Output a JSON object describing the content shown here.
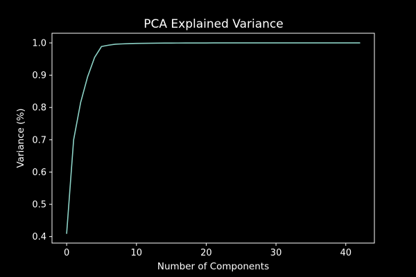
{
  "colors": {
    "background": "#000000",
    "foreground": "#ffffff",
    "series": "#8dd3c7"
  },
  "chart_data": {
    "type": "line",
    "title": "PCA Explained Variance",
    "xlabel": "Number of Components",
    "ylabel": "Variance (%)",
    "xlim": [
      -2.1,
      44.1
    ],
    "ylim": [
      0.38,
      1.03
    ],
    "xticks": [
      0,
      10,
      20,
      30,
      40
    ],
    "yticks": [
      0.4,
      0.5,
      0.6,
      0.7,
      0.8,
      0.9,
      1.0
    ],
    "xtick_labels": [
      "0",
      "10",
      "20",
      "30",
      "40"
    ],
    "ytick_labels": [
      "0.4",
      "0.5",
      "0.6",
      "0.7",
      "0.8",
      "0.9",
      "1.0"
    ],
    "grid": false,
    "legend": "none",
    "series": [
      {
        "x": [
          0,
          1,
          2,
          3,
          4,
          5,
          6,
          7,
          8,
          9,
          10,
          11,
          12,
          13,
          14,
          15,
          16,
          17,
          18,
          19,
          20,
          21,
          22,
          23,
          24,
          25,
          26,
          27,
          28,
          29,
          30,
          31,
          32,
          33,
          34,
          35,
          36,
          37,
          38,
          39,
          40,
          41,
          42
        ],
        "values": [
          0.41,
          0.7,
          0.815,
          0.895,
          0.955,
          0.989,
          0.993,
          0.996,
          0.997,
          0.998,
          0.9985,
          0.9988,
          0.999,
          0.9993,
          0.9995,
          0.9996,
          0.9997,
          0.9998,
          0.9999,
          0.9999,
          0.9999,
          1.0,
          1.0,
          1.0,
          1.0,
          1.0,
          1.0,
          1.0,
          1.0,
          1.0,
          1.0,
          1.0,
          1.0,
          1.0,
          1.0,
          1.0,
          1.0,
          1.0,
          1.0,
          1.0,
          1.0,
          1.0,
          1.0
        ]
      }
    ]
  }
}
